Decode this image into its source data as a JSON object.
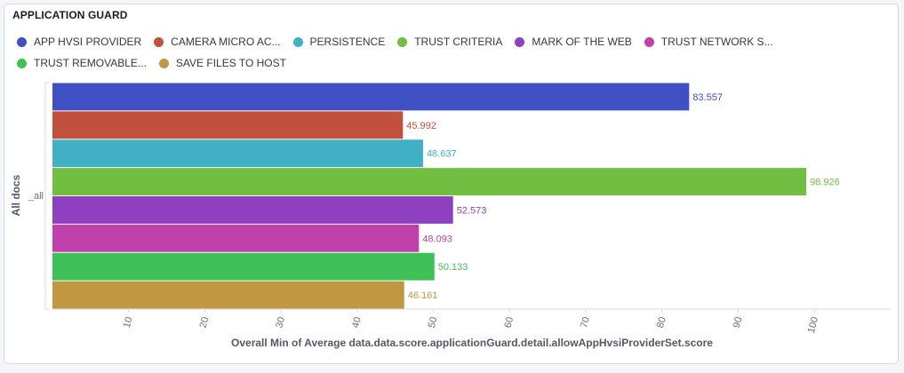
{
  "panel": {
    "title": "APPLICATION GUARD"
  },
  "legend": [
    {
      "label": "APP HVSI PROVIDER",
      "color": "#3f50c4"
    },
    {
      "label": "CAMERA MICRO AC...",
      "color": "#c1503f"
    },
    {
      "label": "PERSISTENCE",
      "color": "#41afc4"
    },
    {
      "label": "TRUST CRITERIA",
      "color": "#71be40"
    },
    {
      "label": "MARK OF THE WEB",
      "color": "#8e40c0"
    },
    {
      "label": "TRUST NETWORK S...",
      "color": "#c040ac"
    },
    {
      "label": "TRUST REMOVABLE...",
      "color": "#40c158"
    },
    {
      "label": "SAVE FILES TO HOST",
      "color": "#c09840"
    }
  ],
  "chart_data": {
    "type": "bar",
    "orientation": "horizontal",
    "categories": [
      "_all"
    ],
    "ylabel": "All docs",
    "xlabel": "Overall Min of Average data.data.score.applicationGuard.detail.allowAppHvsiProviderSet.score",
    "xlim": [
      0,
      110
    ],
    "xticks": [
      10,
      20,
      30,
      40,
      50,
      60,
      70,
      80,
      90,
      100
    ],
    "grid": false,
    "legend_position": "top",
    "series": [
      {
        "name": "APP HVSI PROVIDER",
        "values": [
          83.557
        ],
        "label": "83.557",
        "color": "#3f50c4"
      },
      {
        "name": "CAMERA MICRO AC...",
        "values": [
          45.992
        ],
        "label": "45.992",
        "color": "#c1503f"
      },
      {
        "name": "PERSISTENCE",
        "values": [
          48.637
        ],
        "label": "48.637",
        "color": "#41afc4"
      },
      {
        "name": "TRUST CRITERIA",
        "values": [
          98.926
        ],
        "label": "98.926",
        "color": "#71be40"
      },
      {
        "name": "MARK OF THE WEB",
        "values": [
          52.573
        ],
        "label": "52.573",
        "color": "#8e40c0"
      },
      {
        "name": "TRUST NETWORK S...",
        "values": [
          48.093
        ],
        "label": "48.093",
        "color": "#c040ac"
      },
      {
        "name": "TRUST REMOVABLE...",
        "values": [
          50.133
        ],
        "label": "50.133",
        "color": "#40c158"
      },
      {
        "name": "SAVE FILES TO HOST",
        "values": [
          46.161
        ],
        "label": "46.161",
        "color": "#c09840"
      }
    ]
  }
}
